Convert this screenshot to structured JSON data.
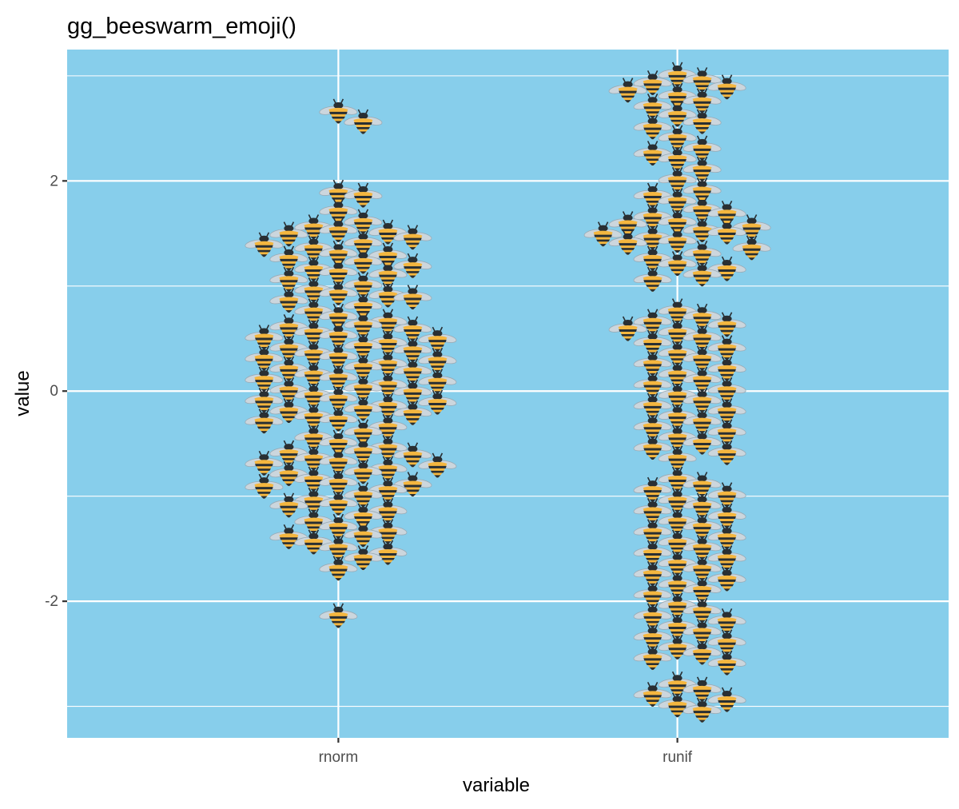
{
  "chart_data": {
    "type": "scatter",
    "title": "gg_beeswarm_emoji()",
    "xlabel": "variable",
    "ylabel": "value",
    "categories": [
      "rnorm",
      "runif"
    ],
    "ylim": [
      -3.3,
      3.25
    ],
    "y_ticks": [
      -2,
      0,
      2
    ],
    "y_tick_labels": [
      "-2",
      "0",
      "2"
    ],
    "grid": true,
    "legend": "none",
    "panel_background": "#87ceeb",
    "marker": "bee-emoji",
    "colors": {
      "bee_body": "#f4b63f",
      "bee_stripe": "#292f33",
      "bee_wing": "#ccd6dd"
    },
    "series": [
      {
        "category": "rnorm",
        "values": [
          2.65,
          2.55,
          1.88,
          1.85,
          1.7,
          1.6,
          1.55,
          1.52,
          1.5,
          1.48,
          1.45,
          1.4,
          1.38,
          1.35,
          1.3,
          1.28,
          1.25,
          1.22,
          1.18,
          1.15,
          1.12,
          1.1,
          1.05,
          1.0,
          0.95,
          0.92,
          0.9,
          0.88,
          0.85,
          0.8,
          0.75,
          0.7,
          0.65,
          0.62,
          0.6,
          0.58,
          0.55,
          0.52,
          0.5,
          0.48,
          0.45,
          0.42,
          0.4,
          0.38,
          0.35,
          0.32,
          0.3,
          0.28,
          0.25,
          0.22,
          0.2,
          0.18,
          0.15,
          0.12,
          0.1,
          0.08,
          0.05,
          0.02,
          0.0,
          -0.02,
          -0.05,
          -0.08,
          -0.1,
          -0.12,
          -0.15,
          -0.18,
          -0.2,
          -0.22,
          -0.25,
          -0.28,
          -0.3,
          -0.35,
          -0.4,
          -0.45,
          -0.5,
          -0.55,
          -0.58,
          -0.6,
          -0.62,
          -0.65,
          -0.68,
          -0.7,
          -0.72,
          -0.75,
          -0.78,
          -0.8,
          -0.85,
          -0.88,
          -0.9,
          -0.92,
          -0.95,
          -1.0,
          -1.05,
          -1.08,
          -1.1,
          -1.15,
          -1.2,
          -1.25,
          -1.3,
          -1.35,
          -1.38,
          -1.4,
          -1.45,
          -1.5,
          -1.55,
          -1.6,
          -1.7,
          -2.15
        ]
      },
      {
        "category": "runif",
        "values": [
          3.0,
          2.95,
          2.92,
          2.88,
          2.85,
          2.8,
          2.75,
          2.7,
          2.62,
          2.55,
          2.5,
          2.4,
          2.3,
          2.25,
          2.2,
          2.1,
          2.0,
          1.9,
          1.85,
          1.8,
          1.72,
          1.68,
          1.65,
          1.6,
          1.58,
          1.55,
          1.52,
          1.5,
          1.48,
          1.45,
          1.42,
          1.4,
          1.35,
          1.3,
          1.25,
          1.2,
          1.15,
          1.1,
          1.05,
          0.75,
          0.7,
          0.65,
          0.62,
          0.58,
          0.55,
          0.5,
          0.45,
          0.4,
          0.35,
          0.3,
          0.25,
          0.2,
          0.15,
          0.1,
          0.05,
          0.0,
          -0.05,
          -0.1,
          -0.15,
          -0.2,
          -0.25,
          -0.3,
          -0.35,
          -0.4,
          -0.45,
          -0.5,
          -0.55,
          -0.6,
          -0.65,
          -0.85,
          -0.9,
          -0.95,
          -1.0,
          -1.05,
          -1.1,
          -1.15,
          -1.2,
          -1.25,
          -1.3,
          -1.35,
          -1.4,
          -1.45,
          -1.5,
          -1.55,
          -1.6,
          -1.65,
          -1.7,
          -1.75,
          -1.8,
          -1.85,
          -1.9,
          -1.95,
          -2.05,
          -2.1,
          -2.15,
          -2.2,
          -2.25,
          -2.3,
          -2.35,
          -2.4,
          -2.45,
          -2.5,
          -2.55,
          -2.6,
          -2.8,
          -2.85,
          -2.9,
          -2.95,
          -3.0,
          -3.05
        ]
      }
    ]
  }
}
